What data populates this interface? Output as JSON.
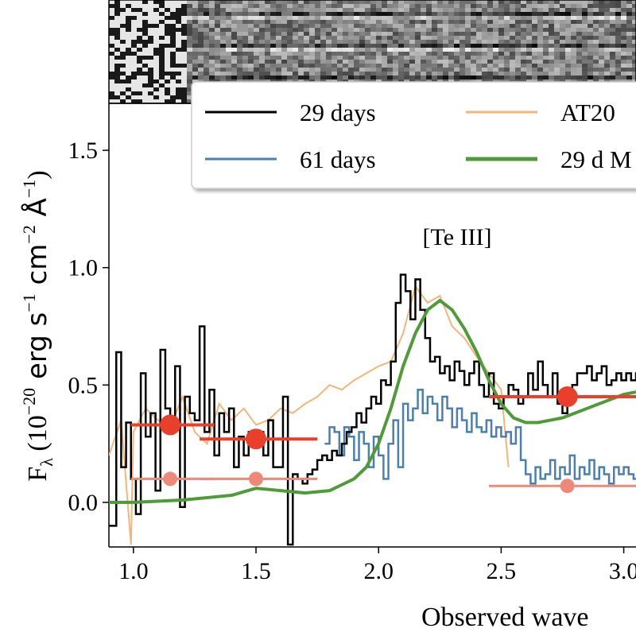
{
  "chart_data": {
    "type": "line",
    "xlabel": "Observed wave",
    "ylabel_parts": [
      "F",
      "λ",
      " (10",
      "−20",
      " erg s",
      "−1",
      " cm",
      "−2",
      " Å",
      "−1",
      ")"
    ],
    "xlim": [
      0.9,
      3.05
    ],
    "ylim": [
      -0.19,
      1.7
    ],
    "xticks": [
      1.0,
      1.5,
      2.0,
      2.5,
      3.0
    ],
    "xtick_labels": [
      "1.0",
      "1.5",
      "2.0",
      "2.5",
      "3.0"
    ],
    "yticks": [
      0.0,
      0.5,
      1.0,
      1.5
    ],
    "ytick_labels": [
      "0.0",
      "0.5",
      "1.0",
      "1.5"
    ],
    "grid": false,
    "legend_position": "top-right",
    "annotations": [
      {
        "text": "[Te III]",
        "x": 2.28,
        "y": 1.1
      }
    ],
    "series": [
      {
        "name": "29 days",
        "style": "step",
        "color": "#000000",
        "x": [
          0.9,
          0.93,
          0.95,
          0.97,
          0.99,
          1.01,
          1.03,
          1.05,
          1.07,
          1.09,
          1.11,
          1.13,
          1.15,
          1.17,
          1.19,
          1.21,
          1.23,
          1.25,
          1.27,
          1.29,
          1.31,
          1.33,
          1.35,
          1.37,
          1.39,
          1.41,
          1.43,
          1.45,
          1.47,
          1.49,
          1.51,
          1.53,
          1.55,
          1.57,
          1.59,
          1.61,
          1.63,
          1.65,
          1.67,
          1.69,
          1.71,
          1.73,
          1.75,
          1.77,
          1.79,
          1.81,
          1.83,
          1.85,
          1.87,
          1.89,
          1.91,
          1.93,
          1.95,
          1.97,
          1.99,
          2.01,
          2.03,
          2.05,
          2.07,
          2.09,
          2.11,
          2.13,
          2.15,
          2.17,
          2.19,
          2.21,
          2.23,
          2.25,
          2.27,
          2.29,
          2.31,
          2.33,
          2.35,
          2.37,
          2.39,
          2.41,
          2.43,
          2.45,
          2.47,
          2.49,
          2.51,
          2.53,
          2.55,
          2.57,
          2.59,
          2.61,
          2.63,
          2.65,
          2.67,
          2.69,
          2.71,
          2.73,
          2.75,
          2.77,
          2.79,
          2.81,
          2.83,
          2.85,
          2.87,
          2.89,
          2.91,
          2.93,
          2.95,
          2.97,
          2.99,
          3.01,
          3.03,
          3.05
        ],
        "y": [
          -0.1,
          0.64,
          0.15,
          0.34,
          0.1,
          -0.05,
          0.55,
          0.28,
          0.38,
          0.05,
          0.65,
          0.4,
          0.3,
          0.58,
          -0.02,
          0.45,
          0.38,
          0.35,
          0.75,
          0.3,
          0.48,
          0.2,
          0.38,
          0.3,
          0.4,
          0.15,
          0.28,
          0.2,
          0.3,
          0.25,
          0.3,
          0.2,
          0.35,
          0.15,
          0.15,
          0.45,
          -0.18,
          0.12,
          0.1,
          0.08,
          0.12,
          0.14,
          0.18,
          0.2,
          0.18,
          0.22,
          0.2,
          0.25,
          0.3,
          0.32,
          0.38,
          0.34,
          0.4,
          0.45,
          0.42,
          0.52,
          0.5,
          0.6,
          0.85,
          0.97,
          0.9,
          0.78,
          0.95,
          0.82,
          0.7,
          0.6,
          0.62,
          0.55,
          0.58,
          0.52,
          0.6,
          0.56,
          0.5,
          0.55,
          0.6,
          0.5,
          0.45,
          0.55,
          0.42,
          0.4,
          0.45,
          0.5,
          0.48,
          0.42,
          0.45,
          0.55,
          0.48,
          0.6,
          0.5,
          0.45,
          0.55,
          0.42,
          0.38,
          0.45,
          0.5,
          0.55,
          0.55,
          0.58,
          0.52,
          0.55,
          0.58,
          0.5,
          0.52,
          0.55,
          0.52,
          0.55,
          0.52,
          0.55
        ]
      },
      {
        "name": "61 days",
        "style": "step",
        "color": "#4a7fb0",
        "x": [
          1.78,
          1.8,
          1.82,
          1.84,
          1.86,
          1.88,
          1.9,
          1.92,
          1.94,
          1.96,
          1.98,
          2.0,
          2.02,
          2.04,
          2.06,
          2.08,
          2.1,
          2.12,
          2.14,
          2.16,
          2.18,
          2.2,
          2.22,
          2.24,
          2.26,
          2.28,
          2.3,
          2.32,
          2.34,
          2.36,
          2.38,
          2.4,
          2.42,
          2.44,
          2.46,
          2.48,
          2.5,
          2.52,
          2.54,
          2.56,
          2.58,
          2.6,
          2.62,
          2.64,
          2.66,
          2.68,
          2.7,
          2.72,
          2.74,
          2.76,
          2.78,
          2.8,
          2.82,
          2.84,
          2.86,
          2.88,
          2.9,
          2.92,
          2.94,
          2.96,
          2.98,
          3.0,
          3.02,
          3.04
        ],
        "y": [
          0.25,
          0.32,
          0.3,
          0.2,
          0.32,
          0.28,
          0.18,
          0.3,
          0.25,
          0.15,
          0.28,
          0.2,
          0.1,
          0.25,
          0.35,
          0.15,
          0.42,
          0.35,
          0.4,
          0.48,
          0.38,
          0.45,
          0.42,
          0.35,
          0.45,
          0.4,
          0.32,
          0.4,
          0.35,
          0.3,
          0.38,
          0.32,
          0.3,
          0.35,
          0.28,
          0.32,
          0.28,
          0.3,
          0.25,
          0.32,
          0.18,
          0.12,
          0.08,
          0.15,
          0.1,
          0.12,
          0.18,
          0.1,
          0.15,
          0.12,
          0.2,
          0.1,
          0.15,
          0.12,
          0.18,
          0.1,
          0.15,
          0.12,
          0.08,
          0.15,
          0.12,
          0.15,
          0.12,
          0.1
        ]
      },
      {
        "name": "AT20",
        "style": "line",
        "color": "#f5b57a",
        "x": [
          0.9,
          0.95,
          0.99,
          1.0,
          1.05,
          1.1,
          1.15,
          1.2,
          1.25,
          1.3,
          1.35,
          1.4,
          1.45,
          1.5,
          1.55,
          1.6,
          1.65,
          1.7,
          1.75,
          1.8,
          1.85,
          1.9,
          1.95,
          2.0,
          2.05,
          2.1,
          2.12,
          2.15,
          2.2,
          2.25,
          2.3,
          2.35,
          2.4,
          2.45,
          2.5,
          2.53
        ],
        "y": [
          0.2,
          0.35,
          -0.18,
          0.3,
          0.4,
          0.35,
          0.32,
          0.45,
          0.3,
          0.25,
          0.42,
          0.35,
          0.4,
          0.33,
          0.35,
          0.4,
          0.38,
          0.42,
          0.45,
          0.5,
          0.48,
          0.52,
          0.55,
          0.58,
          0.6,
          0.72,
          0.8,
          0.92,
          0.85,
          0.88,
          0.75,
          0.7,
          0.62,
          0.55,
          0.48,
          0.15
        ]
      },
      {
        "name": "29 d M",
        "style": "line",
        "color": "#4f9b38",
        "x": [
          0.9,
          1.0,
          1.2,
          1.4,
          1.5,
          1.6,
          1.7,
          1.8,
          1.9,
          1.95,
          2.0,
          2.05,
          2.1,
          2.15,
          2.2,
          2.25,
          2.3,
          2.35,
          2.4,
          2.45,
          2.5,
          2.55,
          2.6,
          2.65,
          2.7,
          2.75,
          2.8,
          2.85,
          2.9,
          2.95,
          3.0,
          3.05
        ],
        "y": [
          0.0,
          0.0,
          0.01,
          0.03,
          0.06,
          0.05,
          0.04,
          0.05,
          0.1,
          0.15,
          0.25,
          0.4,
          0.58,
          0.72,
          0.82,
          0.86,
          0.82,
          0.74,
          0.64,
          0.52,
          0.42,
          0.36,
          0.34,
          0.34,
          0.35,
          0.36,
          0.38,
          0.4,
          0.42,
          0.44,
          0.46,
          0.47
        ]
      }
    ],
    "photometry": [
      {
        "x": 1.15,
        "y": 0.33,
        "xerr": [
          0.99,
          1.33
        ],
        "color": "#e8402a",
        "size": "large"
      },
      {
        "x": 1.5,
        "y": 0.27,
        "xerr": [
          1.27,
          1.75
        ],
        "color": "#e8402a",
        "size": "large"
      },
      {
        "x": 2.77,
        "y": 0.45,
        "xerr": [
          2.45,
          3.05
        ],
        "color": "#e8402a",
        "size": "large"
      },
      {
        "x": 1.15,
        "y": 0.1,
        "xerr": [
          0.99,
          1.33
        ],
        "color": "#ee8878",
        "size": "small"
      },
      {
        "x": 1.5,
        "y": 0.1,
        "xerr": [
          1.27,
          1.75
        ],
        "color": "#ee8878",
        "size": "small"
      },
      {
        "x": 2.77,
        "y": 0.07,
        "xerr": [
          2.45,
          3.05
        ],
        "color": "#ee8878",
        "size": "small"
      }
    ]
  }
}
